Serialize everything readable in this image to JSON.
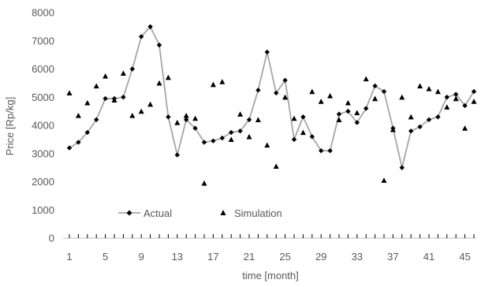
{
  "chart_data": {
    "type": "line",
    "title": "",
    "xlabel": "time [month]",
    "ylabel": "Price [Rp/kg]",
    "xlim": [
      1,
      46
    ],
    "ylim": [
      0,
      8000
    ],
    "x_ticks": [
      1,
      5,
      9,
      13,
      17,
      21,
      25,
      29,
      33,
      37,
      41,
      45
    ],
    "y_ticks": [
      0,
      1000,
      2000,
      3000,
      4000,
      5000,
      6000,
      7000,
      8000
    ],
    "grid": false,
    "legend_position": "bottom-left",
    "series": [
      {
        "name": "Actual",
        "marker": "diamond",
        "line_color": "#a6a6a6",
        "marker_color": "#000000",
        "values": [
          3200,
          3400,
          3750,
          4200,
          4950,
          4950,
          5000,
          6000,
          7150,
          7500,
          6850,
          4300,
          2950,
          4200,
          3900,
          3400,
          3450,
          3550,
          3750,
          3800,
          4200,
          5250,
          6600,
          5150,
          5600,
          3500,
          4300,
          3600,
          3100,
          3100,
          4400,
          4500,
          4100,
          4600,
          5400,
          5200,
          3900,
          2500,
          3800,
          3950,
          4200,
          4300,
          5000,
          5100,
          4700,
          5200
        ]
      },
      {
        "name": "Simulation",
        "marker": "triangle",
        "marker_color": "#000000",
        "values": [
          5150,
          4350,
          4800,
          5400,
          5750,
          4900,
          5850,
          4350,
          4500,
          4750,
          5500,
          5700,
          4100,
          4350,
          4250,
          1950,
          5450,
          5550,
          3500,
          4400,
          3600,
          4200,
          3300,
          2550,
          5000,
          4250,
          3750,
          5200,
          4850,
          5050,
          4200,
          4800,
          4450,
          5650,
          4950,
          2050,
          3850,
          5000,
          4300,
          5400,
          5300,
          5200,
          4650,
          4950,
          3900,
          4850
        ]
      }
    ]
  }
}
